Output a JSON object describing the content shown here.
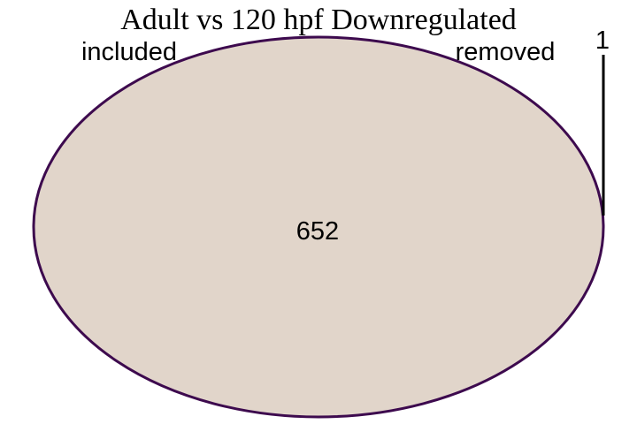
{
  "title": "Adult vs 120 hpf Downregulated",
  "sets": [
    {
      "name": "included"
    },
    {
      "name": "removed"
    }
  ],
  "regions": {
    "included_only": "652",
    "removed_only": "1"
  },
  "colors": {
    "fill": "#e1d5ca",
    "stroke": "#3d0a4e",
    "leader": "#000000"
  }
}
